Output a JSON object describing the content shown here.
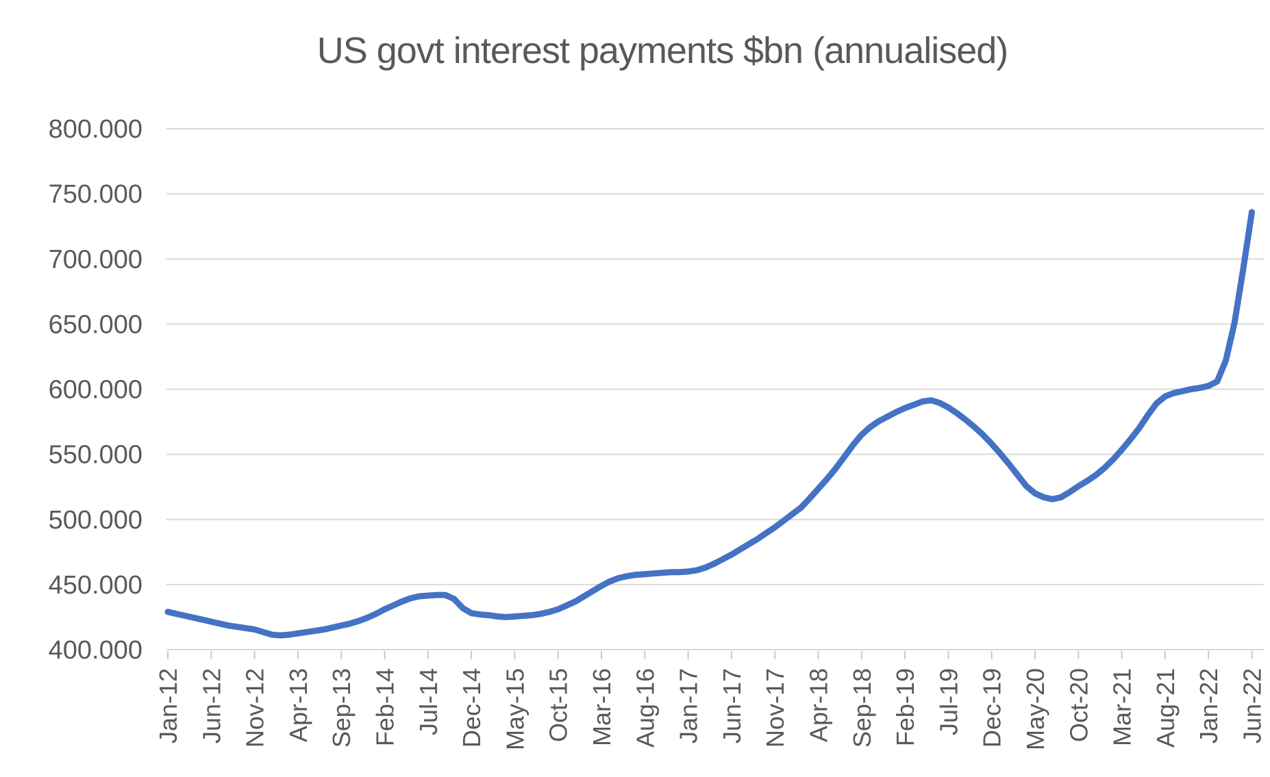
{
  "page": {
    "background": "#FFFFFF"
  },
  "chart_data": {
    "type": "line",
    "title": "US govt interest payments $bn (annualised)",
    "xlabel": "",
    "ylabel": "",
    "legend": "none",
    "grid": "horizontal",
    "x_start": "Jan-12",
    "x_end": "Jun-22",
    "x_frequency": "monthly",
    "x_tick_interval_months": 5,
    "x_tick_labels": [
      "Jan-12",
      "Jun-12",
      "Nov-12",
      "Apr-13",
      "Sep-13",
      "Feb-14",
      "Jul-14",
      "Dec-14",
      "May-15",
      "Oct-15",
      "Mar-16",
      "Aug-16",
      "Jan-17",
      "Jun-17",
      "Nov-17",
      "Apr-18",
      "Sep-18",
      "Feb-19",
      "Jul-19",
      "Dec-19",
      "May-20",
      "Oct-20",
      "Mar-21",
      "Aug-21",
      "Jan-22",
      "Jun-22"
    ],
    "y_axis": {
      "min": 400,
      "max": 800,
      "step": 50,
      "tick_labels": [
        "800.000",
        "750.000",
        "700.000",
        "650.000",
        "600.000",
        "550.000",
        "500.000",
        "450.000",
        "400.000"
      ]
    },
    "values": [
      429,
      427.5,
      426,
      424.5,
      423,
      421.5,
      420,
      418.5,
      417.5,
      416.5,
      415.5,
      413.5,
      411.5,
      411,
      411.5,
      412.5,
      413.5,
      414.5,
      415.5,
      417,
      418.5,
      420,
      422,
      424.5,
      427.5,
      431,
      434,
      437,
      439.5,
      441,
      441.5,
      442,
      442,
      439,
      432,
      428,
      427,
      426.5,
      425.5,
      425,
      425.5,
      426,
      426.5,
      427.5,
      429,
      431,
      434,
      437,
      441,
      445,
      449,
      452.5,
      455,
      456.5,
      457.5,
      458,
      458.5,
      459,
      459.5,
      459.5,
      460,
      461,
      463,
      466,
      469.5,
      473,
      477,
      481,
      485,
      489.5,
      494,
      499,
      504,
      509,
      516,
      523.5,
      531,
      539,
      548,
      557,
      565,
      571,
      575.5,
      579,
      582.5,
      585.5,
      588,
      590.5,
      591.5,
      589.5,
      586,
      581.5,
      576.5,
      571,
      565,
      558,
      550.5,
      542.5,
      534,
      525.5,
      520,
      517,
      515.5,
      517,
      521,
      525.5,
      529.5,
      534,
      539.5,
      546,
      553.5,
      561.5,
      570,
      580,
      589,
      594.5,
      597,
      598.5,
      600,
      601,
      602.5,
      606,
      622,
      651,
      692,
      736
    ],
    "series_color": "#4472C4",
    "line_width": 9,
    "gridline_color": "#D9D9D9",
    "axis_color": "#C9C9C9",
    "text_color": "#595959"
  }
}
